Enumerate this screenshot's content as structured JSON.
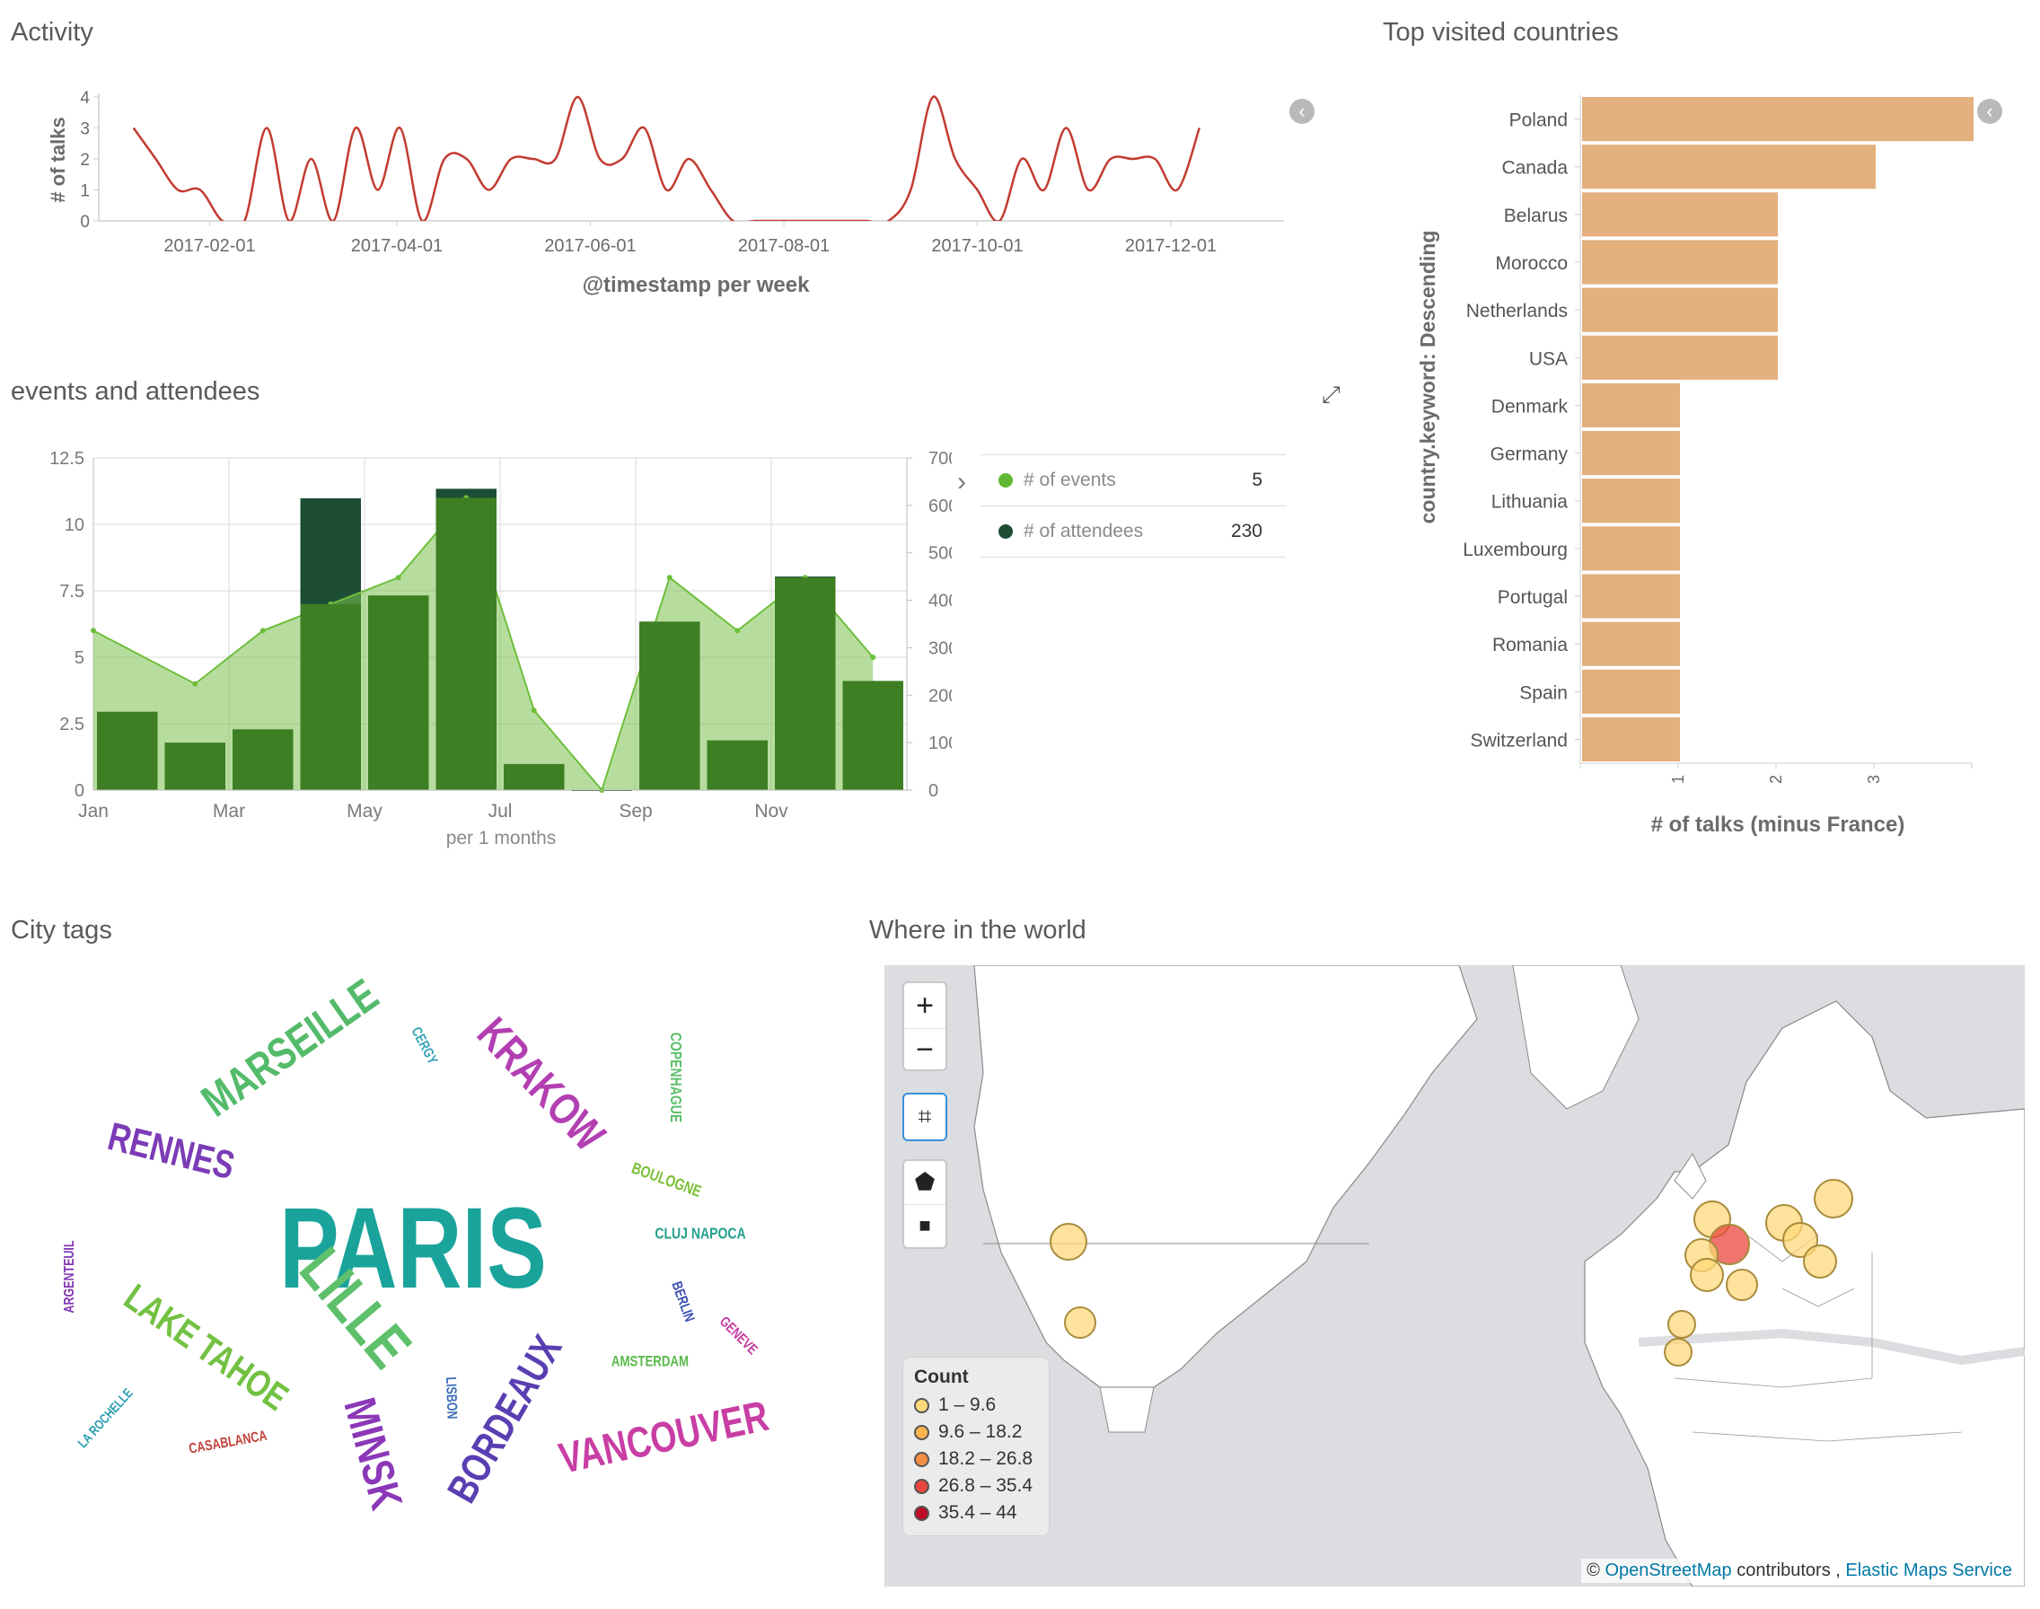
{
  "panels": {
    "activity": {
      "title": "Activity"
    },
    "events": {
      "title": "events and attendees"
    },
    "countries": {
      "title": "Top visited countries"
    },
    "cities": {
      "title": "City tags"
    },
    "map": {
      "title": "Where in the world"
    }
  },
  "chart_data": [
    {
      "id": "activity",
      "type": "line",
      "ylabel": "# of talks",
      "xlabel": "@timestamp per week",
      "ylim": [
        0,
        4
      ],
      "yticks": [
        0,
        1,
        2,
        3,
        4
      ],
      "xticks": [
        "2017-02-01",
        "2017-04-01",
        "2017-06-01",
        "2017-08-01",
        "2017-10-01",
        "2017-12-01"
      ],
      "x": [
        "2017-01-08",
        "2017-01-15",
        "2017-01-22",
        "2017-01-29",
        "2017-02-05",
        "2017-02-12",
        "2017-02-19",
        "2017-02-26",
        "2017-03-05",
        "2017-03-12",
        "2017-03-19",
        "2017-03-26",
        "2017-04-02",
        "2017-04-09",
        "2017-04-16",
        "2017-04-23",
        "2017-04-30",
        "2017-05-07",
        "2017-05-14",
        "2017-05-21",
        "2017-05-28",
        "2017-06-04",
        "2017-06-11",
        "2017-06-18",
        "2017-06-25",
        "2017-07-02",
        "2017-07-09",
        "2017-07-16",
        "2017-07-23",
        "2017-07-30",
        "2017-08-06",
        "2017-08-13",
        "2017-08-20",
        "2017-08-27",
        "2017-09-03",
        "2017-09-10",
        "2017-09-17",
        "2017-09-24",
        "2017-10-01",
        "2017-10-08",
        "2017-10-15",
        "2017-10-22",
        "2017-10-29",
        "2017-11-05",
        "2017-11-12",
        "2017-11-19",
        "2017-11-26",
        "2017-12-03",
        "2017-12-10"
      ],
      "values": [
        3,
        2,
        1,
        1,
        0,
        0,
        3,
        0,
        2,
        0,
        3,
        1,
        3,
        0,
        2,
        2,
        1,
        2,
        2,
        2,
        4,
        2,
        2,
        3,
        1,
        2,
        1,
        0,
        0,
        0,
        0,
        0,
        0,
        0,
        0,
        1,
        4,
        2,
        1,
        0,
        2,
        1,
        3,
        1,
        2,
        2,
        2,
        1,
        3
      ],
      "color": "#c23b30"
    },
    {
      "id": "events",
      "type": "bar",
      "categories": [
        "Jan",
        "Feb",
        "Mar",
        "Apr",
        "May",
        "Jun",
        "Jul",
        "Aug",
        "Sep",
        "Oct",
        "Nov",
        "Dec"
      ],
      "xticks": [
        "Jan",
        "Mar",
        "May",
        "Jul",
        "Sep",
        "Nov"
      ],
      "xlabel": "per 1 months",
      "left_ylim": [
        0,
        12.5
      ],
      "left_yticks": [
        "0",
        "2.5",
        "5",
        "7.5",
        "10",
        "12.5"
      ],
      "right_ylim": [
        0,
        700
      ],
      "right_yticks": [
        "0",
        "100",
        "200",
        "300",
        "400",
        "500",
        "600",
        "700"
      ],
      "series": [
        {
          "name": "# of events",
          "type": "area",
          "axis": "left",
          "color": "#6ebe3b",
          "values": [
            6,
            4,
            6,
            7,
            8,
            11,
            3,
            0,
            8,
            6,
            8,
            5
          ]
        },
        {
          "name": "# of attendees",
          "type": "bar",
          "axis": "right",
          "color": "#1d4e35",
          "values": [
            165,
            100,
            128,
            615,
            410,
            635,
            55,
            0,
            355,
            105,
            450,
            230
          ]
        }
      ],
      "legend": [
        {
          "label": "# of events",
          "value": "5",
          "color": "#5fb832"
        },
        {
          "label": "# of attendees",
          "value": "230",
          "color": "#1d4e35"
        }
      ]
    },
    {
      "id": "countries",
      "type": "bar",
      "orientation": "horizontal",
      "ylabel": "country.keyword: Descending",
      "xlabel": "# of talks (minus France)",
      "categories": [
        "Poland",
        "Canada",
        "Belarus",
        "Morocco",
        "Netherlands",
        "USA",
        "Denmark",
        "Germany",
        "Lithuania",
        "Luxembourg",
        "Portugal",
        "Romania",
        "Spain",
        "Switzerland"
      ],
      "values": [
        4,
        3,
        2,
        2,
        2,
        2,
        1,
        1,
        1,
        1,
        1,
        1,
        1,
        1
      ],
      "xticks": [
        "1",
        "2",
        "3"
      ],
      "color": "#e3b07e"
    }
  ],
  "cities": [
    {
      "text": "PARIS",
      "color": "#1aa39a"
    },
    {
      "text": "MARSEILLE",
      "color": "#53bb6a"
    },
    {
      "text": "RENNES",
      "color": "#7b3cb6"
    },
    {
      "text": "KRAKOW",
      "color": "#b23fb2"
    },
    {
      "text": "LILLE",
      "color": "#5ec06a"
    },
    {
      "text": "LAKE TAHOE",
      "color": "#73c142"
    },
    {
      "text": "MINSK",
      "color": "#8b38b8"
    },
    {
      "text": "BORDEAUX",
      "color": "#5a3fb2"
    },
    {
      "text": "VANCOUVER",
      "color": "#c83ea4"
    },
    {
      "text": "CERGY",
      "color": "#36a4b8"
    },
    {
      "text": "COPENHAGUE",
      "color": "#5dbf6b"
    },
    {
      "text": "BOULOGNE",
      "color": "#7dbf37"
    },
    {
      "text": "CLUJ NAPOCA",
      "color": "#24a18e"
    },
    {
      "text": "ARGENTEUIL",
      "color": "#8236b4"
    },
    {
      "text": "BERLIN",
      "color": "#3a4fb2"
    },
    {
      "text": "GENEVE",
      "color": "#c23aa0"
    },
    {
      "text": "AMSTERDAM",
      "color": "#5ab94a"
    },
    {
      "text": "LISBON",
      "color": "#3b6cb8"
    },
    {
      "text": "LA ROCHELLE",
      "color": "#2a9eb0"
    },
    {
      "text": "CASABLANCA",
      "color": "#c2403a"
    }
  ],
  "map": {
    "zoom_in": "+",
    "zoom_out": "−",
    "legend_title": "Count",
    "legend": [
      {
        "label": "1 – 9.6",
        "color": "#ffd87a"
      },
      {
        "label": "9.6 – 18.2",
        "color": "#fcb44d"
      },
      {
        "label": "18.2 – 26.8",
        "color": "#f58e44"
      },
      {
        "label": "26.8 – 35.4",
        "color": "#e9473d"
      },
      {
        "label": "35.4 – 44",
        "color": "#bd0d26"
      }
    ],
    "attribution_prefix": "©",
    "attribution_osm": "OpenStreetMap",
    "attribution_contrib": "contributors ,",
    "attribution_ems": "Elastic Maps Service"
  }
}
